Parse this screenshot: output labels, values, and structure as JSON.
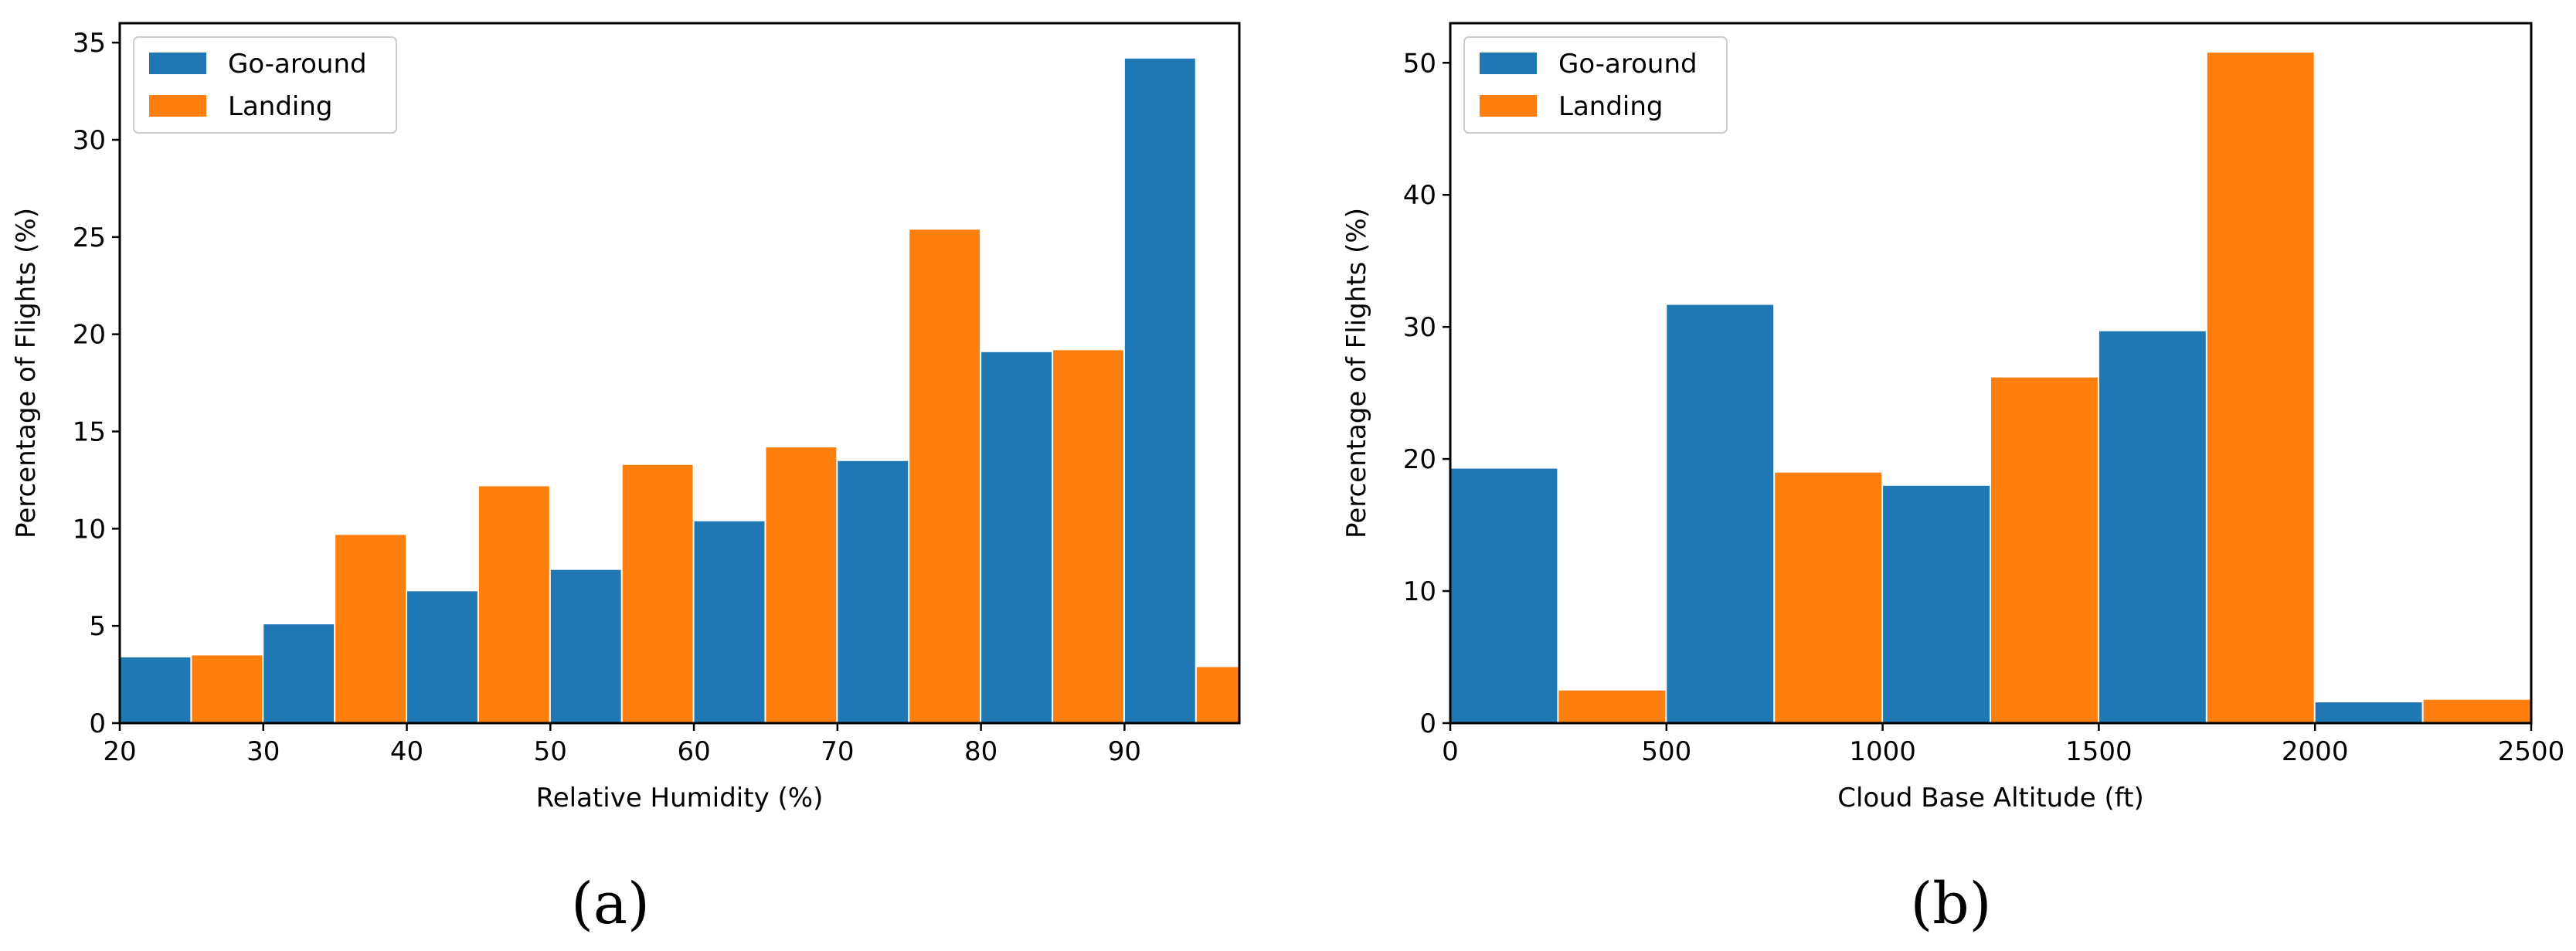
{
  "colors": {
    "go_around": "#1f77b4",
    "landing": "#ff7f0e"
  },
  "chart_data": [
    {
      "type": "bar",
      "caption": "(a)",
      "xlabel": "Relative Humidity (%)",
      "ylabel": "Percentage of Flights (%)",
      "xlim": [
        20,
        98
      ],
      "ylim": [
        0,
        36
      ],
      "xticks": [
        "20",
        "30",
        "40",
        "50",
        "60",
        "70",
        "80",
        "90"
      ],
      "yticks": [
        "0",
        "5",
        "10",
        "15",
        "20",
        "25",
        "30",
        "35"
      ],
      "legend": {
        "position": "top-left",
        "entries": [
          "Go-around",
          "Landing"
        ]
      },
      "bin_edges": [
        20,
        30,
        40,
        50,
        60,
        70,
        80,
        90,
        100
      ],
      "series": [
        {
          "name": "Go-around",
          "values": [
            3.4,
            5.1,
            6.8,
            7.9,
            10.4,
            13.5,
            19.1,
            34.2
          ]
        },
        {
          "name": "Landing",
          "values": [
            3.5,
            9.7,
            12.2,
            13.3,
            14.2,
            25.4,
            19.2,
            2.9
          ]
        }
      ]
    },
    {
      "type": "bar",
      "caption": "(b)",
      "xlabel": "Cloud Base Altitude (ft)",
      "ylabel": "Percentage of Flights (%)",
      "xlim": [
        0,
        2500
      ],
      "ylim": [
        0,
        53
      ],
      "xticks": [
        "0",
        "500",
        "1000",
        "1500",
        "2000",
        "2500"
      ],
      "yticks": [
        "0",
        "10",
        "20",
        "30",
        "40",
        "50"
      ],
      "legend": {
        "position": "top-left",
        "entries": [
          "Go-around",
          "Landing"
        ]
      },
      "bin_edges": [
        0,
        500,
        1000,
        1500,
        2000,
        2500
      ],
      "series": [
        {
          "name": "Go-around",
          "values": [
            19.3,
            31.7,
            18.0,
            29.7,
            1.6
          ]
        },
        {
          "name": "Landing",
          "values": [
            2.5,
            19.0,
            26.2,
            50.8,
            1.8
          ]
        }
      ]
    }
  ]
}
